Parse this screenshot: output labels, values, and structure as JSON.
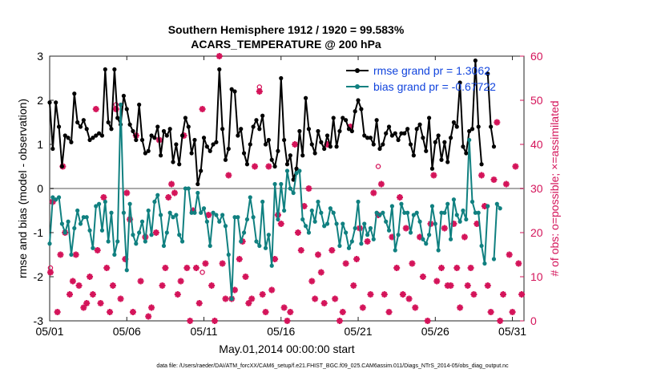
{
  "chart_data": {
    "type": "line",
    "title_line1": "Southern Hemisphere 1912 / 1920 = 99.583%",
    "title_line2": "ACARS_TEMPERATURE @ 200 hPa",
    "xlabel": "May.01,2014 00:00:00 start",
    "ylabel_left": "rmse and bias (model - observation)",
    "ylabel_right": "# of obs: o=possible; ×=assimilated",
    "footer": "data file: /Users/raeder/DAI/ATM_forcXX/CAM6_setup/f.e21.FHIST_BGC.f09_025.CAM6assim.011/Diags_NTrS_2014-05/obs_diag_output.nc",
    "x_ticks": [
      {
        "value": 0,
        "label": "05/01"
      },
      {
        "value": 5,
        "label": "05/06"
      },
      {
        "value": 10,
        "label": "05/11"
      },
      {
        "value": 15,
        "label": "05/16"
      },
      {
        "value": 20,
        "label": "05/21"
      },
      {
        "value": 25,
        "label": "05/26"
      },
      {
        "value": 30,
        "label": "05/31"
      }
    ],
    "xlim": [
      0,
      30.75
    ],
    "ylim_left": [
      -3,
      3
    ],
    "ylim_right": [
      0,
      60
    ],
    "y_ticks_left": [
      "-3",
      "-2",
      "-1",
      "0",
      "1",
      "2",
      "3"
    ],
    "y_ticks_right": [
      "0",
      "10",
      "20",
      "30",
      "40",
      "50",
      "60"
    ],
    "zero_line": 0,
    "colors": {
      "rmse": "#000000",
      "bias": "#108080",
      "obs": "#d4145a",
      "legend_text": "#1144dd",
      "zero_line": "#aaaaaa",
      "axis": "#222222"
    },
    "legend": [
      {
        "key": "rmse",
        "label": "rmse grand pr = 1.3062"
      },
      {
        "key": "bias",
        "label": "bias grand pr = -0.67722"
      }
    ],
    "series": [
      {
        "name": "rmse",
        "values": [
          1.95,
          0.9,
          1.95,
          1.4,
          0.5,
          1.2,
          1.15,
          1.05,
          2.15,
          1.5,
          1.4,
          1.55,
          1.35,
          1.1,
          1.15,
          1.2,
          1.25,
          1.2,
          2.7,
          1.5,
          1.35,
          2.7,
          1.6,
          1.45,
          2.1,
          1.8,
          1.45,
          1.3,
          1.1,
          1.9,
          1.1,
          0.8,
          0.85,
          1.2,
          1.15,
          1.4,
          0.75,
          1.3,
          1.2,
          1.35,
          0.6,
          1.0,
          0.55,
          1.2,
          1.6,
          1.4,
          0.8,
          1.1,
          0.1,
          0.4,
          1.15,
          0.95,
          0.85,
          1.0,
          1.05,
          2.7,
          1.35,
          0.65,
          0.9,
          2.25,
          2.2,
          1.2,
          1.35,
          0.8,
          0.55,
          1.0,
          1.4,
          1.55,
          1.35,
          1.65,
          1.0,
          1.1,
          0.65,
          0.5,
          0.85,
          2.5,
          1.1,
          0.55,
          0.75,
          0.2,
          0.45,
          1.3,
          0.75,
          2.05,
          1.35,
          1.0,
          0.8,
          1.3,
          1.05,
          0.9,
          1.2,
          0.95,
          1.6,
          0.95,
          1.3,
          1.6,
          1.55,
          1.35,
          1.3,
          1.75,
          2.0,
          1.8,
          1.2,
          1.15,
          1.15,
          1.0,
          1.55,
          0.9,
          1.0,
          1.25,
          1.4,
          1.2,
          1.25,
          1.1,
          1.25,
          1.25,
          1.35,
          1.0,
          0.75,
          1.35,
          1.45,
          1.15,
          0.85,
          1.6,
          0.45,
          1.05,
          1.2,
          0.65,
          1.05,
          0.6,
          1.15,
          1.5,
          1.4,
          2.4,
          0.95,
          0.8,
          1.3,
          1.35,
          2.9,
          1.4,
          0.55,
          null,
          2.6,
          1.4,
          0.95
        ],
        "start_day": 0,
        "step_day": 0.2
      },
      {
        "name": "bias",
        "values": [
          -1.25,
          -0.2,
          -0.25,
          -0.2,
          -0.8,
          -1.0,
          -0.75,
          -1.5,
          -0.9,
          -0.5,
          -0.8,
          -0.65,
          -0.65,
          -0.95,
          -1.35,
          -0.4,
          -0.35,
          -0.95,
          -0.3,
          -1.2,
          -0.55,
          -1.5,
          -1.2,
          1.9,
          -0.55,
          -1.85,
          -0.35,
          -1.05,
          -1.25,
          -1.0,
          -0.75,
          -1.2,
          -0.5,
          -1.05,
          -0.3,
          -0.15,
          -0.6,
          -1.3,
          -1.0,
          -0.55,
          -0.65,
          -0.6,
          -1.05,
          -1.2,
          0.0,
          0.0,
          -0.55,
          -0.55,
          -0.1,
          -0.55,
          -0.45,
          -0.75,
          -1.3,
          -0.55,
          -0.6,
          -0.75,
          -0.6,
          -0.85,
          -1.5,
          -2.5,
          -0.65,
          -0.65,
          -1.2,
          -1.0,
          -0.7,
          -0.2,
          -0.65,
          -1.2,
          -1.3,
          -0.3,
          -1.35,
          -1.05,
          -1.75,
          0.1,
          -0.7,
          0.1,
          -0.5,
          0.4,
          0.0,
          -0.1,
          0.35,
          0.4,
          -0.7,
          -0.85,
          -1.0,
          -0.5,
          -0.75,
          -0.3,
          -0.55,
          -0.85,
          -0.8,
          -0.45,
          -0.55,
          -0.8,
          -1.3,
          -0.8,
          -1.0,
          -1.35,
          -1.2,
          -0.9,
          -0.3,
          -1.25,
          -0.8,
          -1.05,
          -0.9,
          -1.15,
          -0.55,
          -0.6,
          -0.55,
          -0.75,
          -0.95,
          -0.4,
          -1.4,
          -1.05,
          -0.35,
          -0.55,
          -0.55,
          -1.0,
          -0.6,
          -0.55,
          -0.75,
          -1.15,
          -1.25,
          -1.05,
          -0.4,
          -0.8,
          -1.4,
          -0.55,
          -0.55,
          -0.35,
          -1.15,
          -0.25,
          -0.6,
          -0.75,
          -0.5,
          -0.7,
          1.1,
          -0.3,
          -0.55,
          -0.55,
          -1.3,
          -1.7,
          -0.4,
          null,
          -1.6,
          -0.35,
          -0.45
        ],
        "start_day": 0,
        "step_day": 0.2
      }
    ],
    "obs_assimilated": [
      [
        0.05,
        11
      ],
      [
        0.2,
        27
      ],
      [
        0.5,
        2
      ],
      [
        0.7,
        15
      ],
      [
        0.85,
        35
      ],
      [
        1.0,
        20
      ],
      [
        1.3,
        6
      ],
      [
        1.5,
        9
      ],
      [
        1.7,
        15
      ],
      [
        1.9,
        8
      ],
      [
        2.2,
        3
      ],
      [
        2.4,
        4
      ],
      [
        2.6,
        10
      ],
      [
        2.8,
        6
      ],
      [
        3.0,
        48
      ],
      [
        3.1,
        16
      ],
      [
        3.3,
        4
      ],
      [
        3.5,
        28
      ],
      [
        3.7,
        12
      ],
      [
        3.9,
        2
      ],
      [
        4.1,
        8
      ],
      [
        4.3,
        48
      ],
      [
        4.6,
        5
      ],
      [
        4.9,
        14
      ],
      [
        5.0,
        29
      ],
      [
        5.2,
        23
      ],
      [
        5.4,
        2
      ],
      [
        5.6,
        42
      ],
      [
        5.9,
        9
      ],
      [
        6.2,
        19
      ],
      [
        6.4,
        1
      ],
      [
        6.6,
        3
      ],
      [
        6.9,
        20
      ],
      [
        7.1,
        41
      ],
      [
        7.3,
        8
      ],
      [
        7.5,
        12
      ],
      [
        7.7,
        28
      ],
      [
        7.9,
        31
      ],
      [
        8.1,
        29
      ],
      [
        8.3,
        6
      ],
      [
        8.5,
        9
      ],
      [
        8.7,
        42
      ],
      [
        8.9,
        12
      ],
      [
        9.1,
        0
      ],
      [
        9.3,
        25
      ],
      [
        9.5,
        12
      ],
      [
        9.7,
        4
      ],
      [
        9.9,
        48
      ],
      [
        10.1,
        13
      ],
      [
        10.3,
        24
      ],
      [
        10.5,
        8
      ],
      [
        10.7,
        0
      ],
      [
        11.0,
        60
      ],
      [
        11.2,
        13
      ],
      [
        11.4,
        5
      ],
      [
        11.6,
        33
      ],
      [
        11.8,
        5
      ],
      [
        12.0,
        7
      ],
      [
        12.3,
        14
      ],
      [
        12.5,
        18
      ],
      [
        12.7,
        10
      ],
      [
        12.9,
        4
      ],
      [
        13.1,
        5
      ],
      [
        13.3,
        35
      ],
      [
        13.6,
        52
      ],
      [
        13.8,
        6
      ],
      [
        14.0,
        2
      ],
      [
        14.2,
        35
      ],
      [
        14.4,
        7
      ],
      [
        14.6,
        14
      ],
      [
        14.8,
        24
      ],
      [
        15.0,
        22
      ],
      [
        15.2,
        3
      ],
      [
        15.4,
        0
      ],
      [
        15.6,
        2
      ],
      [
        15.9,
        40
      ],
      [
        16.1,
        20
      ],
      [
        16.3,
        16
      ],
      [
        16.5,
        26
      ],
      [
        16.8,
        30
      ],
      [
        17.0,
        9
      ],
      [
        17.2,
        5
      ],
      [
        17.4,
        15
      ],
      [
        17.6,
        11
      ],
      [
        17.8,
        4
      ],
      [
        18.0,
        40
      ],
      [
        18.3,
        16
      ],
      [
        18.5,
        5
      ],
      [
        18.8,
        0
      ],
      [
        19.0,
        2
      ],
      [
        19.2,
        13
      ],
      [
        19.5,
        44
      ],
      [
        19.7,
        8
      ],
      [
        19.9,
        14
      ],
      [
        20.1,
        21
      ],
      [
        20.3,
        3
      ],
      [
        20.6,
        18
      ],
      [
        20.8,
        6
      ],
      [
        21.0,
        29
      ],
      [
        21.3,
        24
      ],
      [
        21.5,
        31
      ],
      [
        21.7,
        6
      ],
      [
        22.0,
        2
      ],
      [
        22.2,
        19
      ],
      [
        22.5,
        12
      ],
      [
        22.7,
        28
      ],
      [
        22.9,
        6
      ],
      [
        23.1,
        21
      ],
      [
        23.3,
        5
      ],
      [
        23.5,
        13
      ],
      [
        23.7,
        3
      ],
      [
        24.0,
        19
      ],
      [
        24.2,
        10
      ],
      [
        24.5,
        0
      ],
      [
        24.7,
        22
      ],
      [
        24.9,
        33
      ],
      [
        25.1,
        9
      ],
      [
        25.4,
        12
      ],
      [
        25.6,
        21
      ],
      [
        25.8,
        8
      ],
      [
        26.0,
        8
      ],
      [
        26.2,
        22
      ],
      [
        26.4,
        12
      ],
      [
        26.6,
        3
      ],
      [
        26.9,
        19
      ],
      [
        27.1,
        8
      ],
      [
        27.3,
        12
      ],
      [
        27.5,
        6
      ],
      [
        27.7,
        22
      ],
      [
        28.0,
        33
      ],
      [
        28.2,
        26
      ],
      [
        28.4,
        8
      ],
      [
        28.6,
        2
      ],
      [
        28.8,
        32
      ],
      [
        29.0,
        45
      ],
      [
        29.2,
        0
      ],
      [
        29.4,
        6
      ],
      [
        29.6,
        31
      ],
      [
        29.8,
        15
      ],
      [
        30.0,
        2
      ],
      [
        30.2,
        35
      ],
      [
        30.4,
        13
      ],
      [
        30.6,
        6
      ]
    ],
    "obs_possible": [
      [
        0.05,
        12
      ],
      [
        4.3,
        49
      ],
      [
        9.9,
        11
      ],
      [
        13.6,
        53
      ],
      [
        21.3,
        35
      ]
    ]
  }
}
